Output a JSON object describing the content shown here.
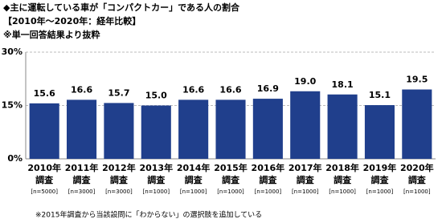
{
  "chart_data": {
    "type": "bar",
    "title": "◆主に運転している車が「コンパクトカー」である人の割合",
    "subtitle": "【2010年～2020年：経年比較】",
    "note": "※単一回答結果より抜粋",
    "footnote": "※2015年調査から当該設問に「わからない」の選択肢を追加している",
    "categories": [
      "2010年",
      "2011年",
      "2012年",
      "2013年",
      "2014年",
      "2015年",
      "2016年",
      "2017年",
      "2018年",
      "2019年",
      "2020年"
    ],
    "category_line2": [
      "調査",
      "調査",
      "調査",
      "調査",
      "調査",
      "調査",
      "調査",
      "調査",
      "調査",
      "調査",
      "調査"
    ],
    "sample_sizes": [
      "[n=5000]",
      "[n=3000]",
      "[n=3000]",
      "[n=1000]",
      "[n=1000]",
      "[n=1000]",
      "[n=1000]",
      "[n=1000]",
      "[n=1000]",
      "[n=1000]",
      "[n=1000]"
    ],
    "values": [
      15.6,
      16.6,
      15.7,
      15.0,
      16.6,
      16.6,
      16.9,
      19.0,
      18.1,
      15.1,
      19.5
    ],
    "value_labels": [
      "15.6",
      "16.6",
      "15.7",
      "15.0",
      "16.6",
      "16.6",
      "16.9",
      "19.0",
      "18.1",
      "15.1",
      "19.5"
    ],
    "color": "#203f8c",
    "ylim": [
      0,
      30
    ],
    "yticks": [
      {
        "value": 0,
        "label": "0%"
      },
      {
        "value": 15,
        "label": "15%"
      },
      {
        "value": 30,
        "label": "30%"
      }
    ],
    "grid": true
  }
}
